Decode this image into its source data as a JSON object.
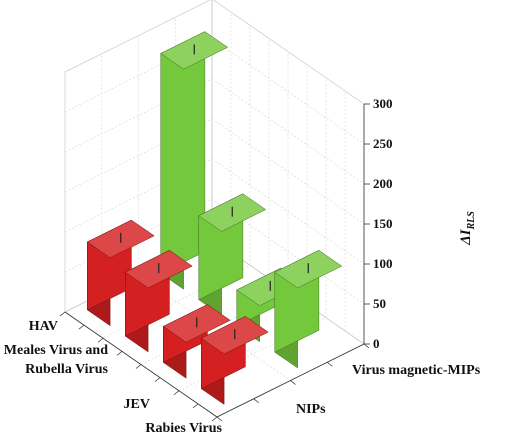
{
  "chart_data": {
    "type": "bar3d",
    "title": "",
    "zlabel": "ΔI",
    "zlabel_sub": "RLS",
    "zlim": [
      0,
      300
    ],
    "z_ticks": [
      "0",
      "50",
      "100",
      "150",
      "200",
      "250",
      "300"
    ],
    "categories": [
      "HAV",
      "Meales Virus and Rubella Virus",
      "JEV",
      "Rabies Virus"
    ],
    "category_labels": [
      {
        "lines": [
          "HAV"
        ]
      },
      {
        "lines": [
          "Meales Virus and",
          "Rubella Virus"
        ]
      },
      {
        "lines": [
          "JEV"
        ]
      },
      {
        "lines": [
          "Rabies Virus"
        ]
      }
    ],
    "groups": [
      "NIPs",
      "Virus magnetic-MIPs"
    ],
    "series": [
      {
        "name": "NIPs",
        "color": "#d42020",
        "values": [
          85,
          80,
          45,
          63
        ]
      },
      {
        "name": "Virus magnetic-MIPs",
        "color": "#74c83c",
        "values": [
          275,
          105,
          45,
          100
        ]
      }
    ],
    "grid": true
  }
}
